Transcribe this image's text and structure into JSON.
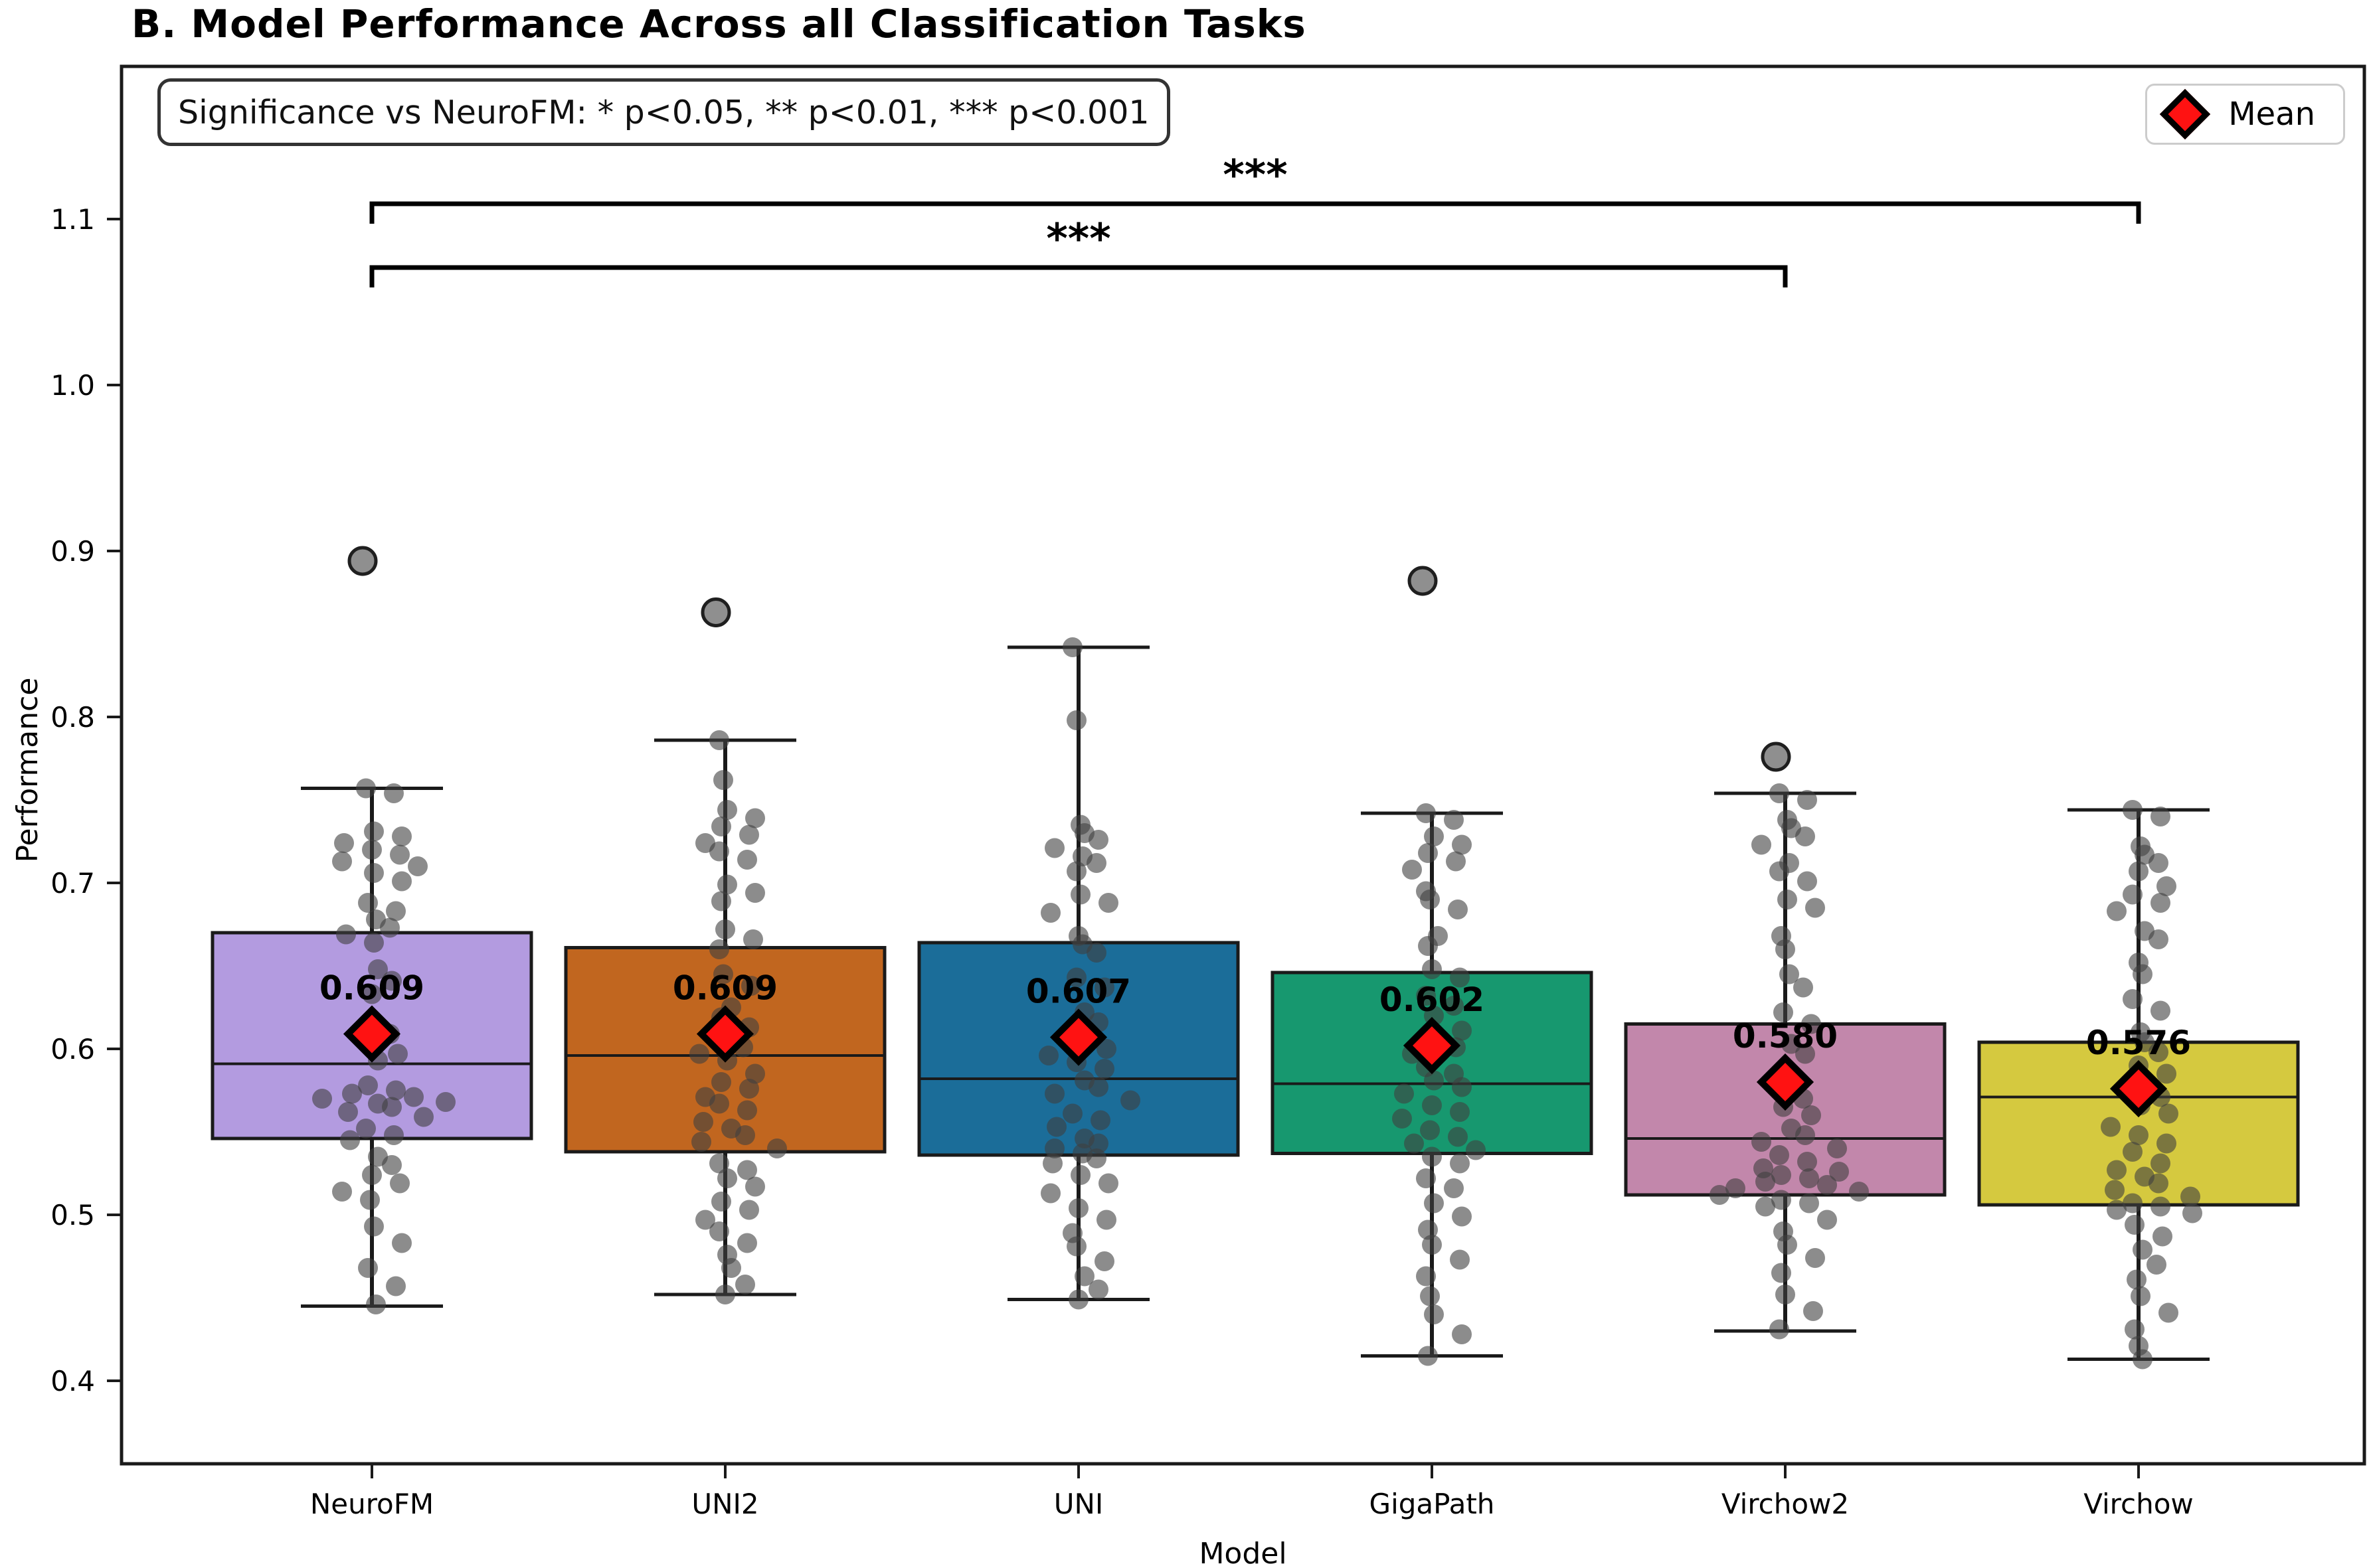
{
  "title": "B. Model Performance Across all Classification Tasks",
  "significance_note": "Significance vs NeuroFM: * p<0.05, ** p<0.01, *** p<0.001",
  "legend": {
    "label": "Mean",
    "marker_color": "#ff1212"
  },
  "axes": {
    "x_label": "Model",
    "y_label": "Performance",
    "y_tick_labels": [
      "0.4",
      "0.5",
      "0.6",
      "0.7",
      "0.8",
      "0.9",
      "1.0",
      "1.1"
    ],
    "y_tick_values": [
      0.4,
      0.5,
      0.6,
      0.7,
      0.8,
      0.9,
      1.0,
      1.1
    ]
  },
  "chart_data": {
    "type": "box",
    "title": "B. Model Performance Across all Classification Tasks",
    "xlabel": "Model",
    "ylabel": "Performance",
    "ylim": [
      0.35,
      1.192
    ],
    "grid": false,
    "legend_position": "upper right",
    "categories": [
      "NeuroFM",
      "UNI2",
      "UNI",
      "GigaPath",
      "Virchow2",
      "Virchow"
    ],
    "significance_brackets": [
      {
        "from": "NeuroFM",
        "to": "Virchow",
        "label": "***"
      },
      {
        "from": "NeuroFM",
        "to": "Virchow2",
        "label": "***"
      }
    ],
    "series": [
      {
        "name": "NeuroFM",
        "color": "#b39be0",
        "mean": 0.609,
        "mean_label": "0.609",
        "whisker_low": 0.445,
        "q1": 0.546,
        "median": 0.591,
        "q3": 0.67,
        "whisker_high": 0.757,
        "outliers": [
          0.894
        ],
        "points": [
          0.757,
          0.754,
          0.731,
          0.728,
          0.724,
          0.72,
          0.717,
          0.713,
          0.71,
          0.706,
          0.701,
          0.688,
          0.683,
          0.678,
          0.673,
          0.669,
          0.664,
          0.648,
          0.641,
          0.633,
          0.615,
          0.609,
          0.603,
          0.597,
          0.593,
          0.578,
          0.575,
          0.573,
          0.571,
          0.57,
          0.568,
          0.567,
          0.565,
          0.562,
          0.559,
          0.552,
          0.548,
          0.545,
          0.535,
          0.53,
          0.524,
          0.519,
          0.514,
          0.509,
          0.493,
          0.483,
          0.468,
          0.457,
          0.446
        ]
      },
      {
        "name": "UNI2",
        "color": "#c1661f",
        "mean": 0.609,
        "mean_label": "0.609",
        "whisker_low": 0.452,
        "q1": 0.538,
        "median": 0.596,
        "q3": 0.661,
        "whisker_high": 0.786,
        "outliers": [
          0.863
        ],
        "points": [
          0.786,
          0.762,
          0.744,
          0.739,
          0.734,
          0.729,
          0.724,
          0.719,
          0.714,
          0.699,
          0.694,
          0.689,
          0.672,
          0.666,
          0.66,
          0.645,
          0.638,
          0.625,
          0.619,
          0.613,
          0.607,
          0.601,
          0.597,
          0.593,
          0.585,
          0.58,
          0.576,
          0.571,
          0.567,
          0.563,
          0.556,
          0.552,
          0.548,
          0.544,
          0.54,
          0.531,
          0.527,
          0.522,
          0.517,
          0.508,
          0.503,
          0.497,
          0.49,
          0.483,
          0.476,
          0.468,
          0.458,
          0.452
        ]
      },
      {
        "name": "UNI",
        "color": "#1b6d99",
        "mean": 0.607,
        "mean_label": "0.607",
        "whisker_low": 0.449,
        "q1": 0.536,
        "median": 0.582,
        "q3": 0.664,
        "whisker_high": 0.842,
        "outliers": [],
        "points": [
          0.842,
          0.798,
          0.735,
          0.73,
          0.726,
          0.721,
          0.716,
          0.712,
          0.707,
          0.693,
          0.688,
          0.682,
          0.668,
          0.663,
          0.658,
          0.643,
          0.637,
          0.622,
          0.616,
          0.605,
          0.6,
          0.596,
          0.592,
          0.588,
          0.581,
          0.577,
          0.573,
          0.569,
          0.561,
          0.557,
          0.553,
          0.546,
          0.543,
          0.54,
          0.537,
          0.534,
          0.531,
          0.524,
          0.519,
          0.513,
          0.504,
          0.497,
          0.489,
          0.481,
          0.472,
          0.463,
          0.455,
          0.449
        ]
      },
      {
        "name": "GigaPath",
        "color": "#17986f",
        "mean": 0.602,
        "mean_label": "0.602",
        "whisker_low": 0.415,
        "q1": 0.537,
        "median": 0.579,
        "q3": 0.646,
        "whisker_high": 0.742,
        "outliers": [
          0.882
        ],
        "points": [
          0.742,
          0.738,
          0.728,
          0.723,
          0.718,
          0.713,
          0.708,
          0.695,
          0.69,
          0.684,
          0.668,
          0.662,
          0.648,
          0.643,
          0.632,
          0.626,
          0.62,
          0.611,
          0.606,
          0.601,
          0.597,
          0.589,
          0.585,
          0.581,
          0.577,
          0.573,
          0.566,
          0.562,
          0.558,
          0.551,
          0.547,
          0.543,
          0.539,
          0.535,
          0.531,
          0.522,
          0.516,
          0.507,
          0.499,
          0.491,
          0.482,
          0.473,
          0.463,
          0.451,
          0.44,
          0.428,
          0.415
        ]
      },
      {
        "name": "Virchow2",
        "color": "#c287ab",
        "mean": 0.58,
        "mean_label": "0.580",
        "whisker_low": 0.43,
        "q1": 0.512,
        "median": 0.546,
        "q3": 0.615,
        "whisker_high": 0.754,
        "outliers": [
          0.776
        ],
        "points": [
          0.754,
          0.75,
          0.738,
          0.733,
          0.728,
          0.723,
          0.712,
          0.707,
          0.701,
          0.69,
          0.685,
          0.668,
          0.66,
          0.645,
          0.637,
          0.622,
          0.615,
          0.603,
          0.597,
          0.585,
          0.58,
          0.57,
          0.565,
          0.56,
          0.552,
          0.548,
          0.544,
          0.54,
          0.536,
          0.532,
          0.528,
          0.526,
          0.524,
          0.522,
          0.52,
          0.518,
          0.516,
          0.514,
          0.512,
          0.509,
          0.507,
          0.505,
          0.497,
          0.49,
          0.482,
          0.474,
          0.465,
          0.452,
          0.442,
          0.431
        ]
      },
      {
        "name": "Virchow",
        "color": "#d5c93f",
        "mean": 0.576,
        "mean_label": "0.576",
        "whisker_low": 0.413,
        "q1": 0.506,
        "median": 0.571,
        "q3": 0.604,
        "whisker_high": 0.744,
        "outliers": [],
        "points": [
          0.744,
          0.74,
          0.722,
          0.717,
          0.712,
          0.707,
          0.698,
          0.693,
          0.688,
          0.683,
          0.671,
          0.666,
          0.652,
          0.645,
          0.63,
          0.623,
          0.61,
          0.604,
          0.598,
          0.59,
          0.585,
          0.58,
          0.571,
          0.566,
          0.561,
          0.553,
          0.548,
          0.543,
          0.538,
          0.531,
          0.527,
          0.523,
          0.519,
          0.515,
          0.511,
          0.507,
          0.505,
          0.503,
          0.501,
          0.494,
          0.487,
          0.479,
          0.47,
          0.461,
          0.451,
          0.441,
          0.431,
          0.421,
          0.413
        ]
      }
    ]
  }
}
